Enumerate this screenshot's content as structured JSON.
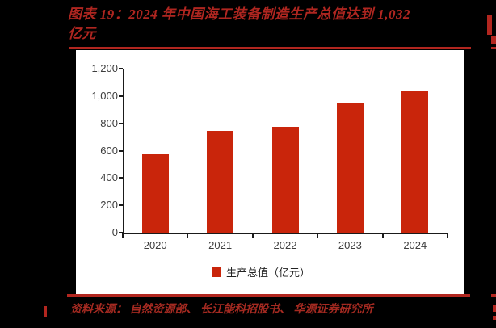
{
  "header": {
    "title_line1": "图表 19：2024 年中国海工装备制造生产总值达到 1,032",
    "title_line2": "亿元"
  },
  "legend": {
    "label": "生产总值（亿元）"
  },
  "footer": {
    "source": "资料来源： 自然资源部、 长江能科招股书、 华源证券研究所"
  },
  "colors": {
    "page_background": "#000000",
    "panel_background": "#ffffff",
    "bar_red": "#C9250B",
    "title_red": "#AF2620",
    "rule_red": "#B2261F",
    "source_red": "#A52A21",
    "axis_black": "#1a1a1a",
    "axis_text_gray": "#3d3d3d"
  },
  "chart_data": {
    "type": "bar",
    "title": "2024年中国海工装备制造生产总值达到1,032亿元",
    "categories": [
      "2020",
      "2021",
      "2022",
      "2023",
      "2024"
    ],
    "series": [
      {
        "name": "生产总值（亿元）",
        "values": [
          575,
          745,
          775,
          950,
          1032
        ]
      }
    ],
    "xlabel": "",
    "ylabel": "",
    "ylim": [
      0,
      1200
    ],
    "y_tick_labels": [
      "0",
      "200",
      "400",
      "600",
      "800",
      "1,000",
      "1,200"
    ],
    "y_tick_values": [
      0,
      200,
      400,
      600,
      800,
      1000,
      1200
    ],
    "grid": false,
    "legend_position": "bottom"
  }
}
